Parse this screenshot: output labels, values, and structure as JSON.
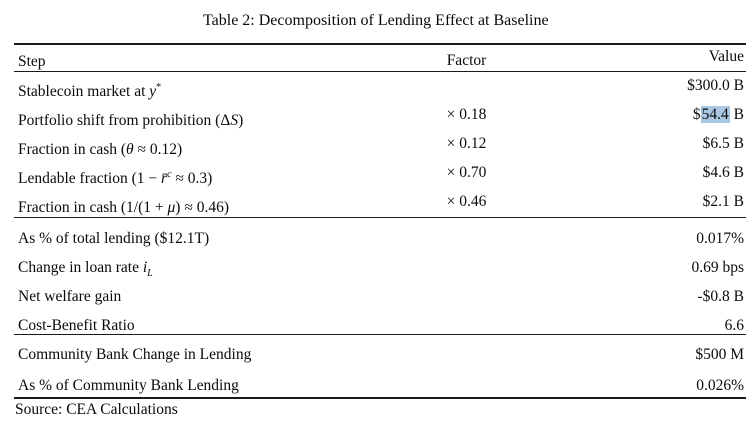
{
  "title": "Table 2: Decomposition of Lending Effect at Baseline",
  "header": {
    "step": "Step",
    "factor": "Factor",
    "value": "Value"
  },
  "highlight_color": "#a9c7e1",
  "rows_block1": [
    {
      "step_pre": "Stablecoin market at ",
      "step_var": "y",
      "step_sup": "*",
      "step_post": "",
      "factor": "",
      "value": "$300.0 B"
    },
    {
      "step_pre": "Portfolio shift from prohibition (Δ",
      "step_var": "S",
      "step_sup": "",
      "step_post": ")",
      "factor": "× 0.18",
      "value_pre": "$",
      "value_hl": "54.4",
      "value_post": " B"
    },
    {
      "step_pre": "Fraction in cash (",
      "step_var": "θ",
      "step_sup": "",
      "step_post": " ≈ 0.12)",
      "factor": "× 0.12",
      "value": "$6.5 B"
    },
    {
      "step_pre": "Lendable fraction (1 − ",
      "step_var": "r̄",
      "step_sup": "c",
      "step_post": " ≈ 0.3)",
      "factor": "× 0.70",
      "value": "$4.6 B"
    },
    {
      "step_pre": "Fraction in cash (1/(1 + ",
      "step_var": "μ",
      "step_sup": "",
      "step_post": ") ≈ 0.46)",
      "factor": "× 0.46",
      "value": "$2.1 B"
    }
  ],
  "rows_block2": [
    {
      "step": "As % of total lending ($12.1T)",
      "value": "0.017%"
    },
    {
      "step_pre": "Change in loan rate ",
      "step_var": "i",
      "step_sub": "L",
      "value": "0.69 bps"
    },
    {
      "step": "Net welfare gain",
      "value": "-$0.8 B"
    },
    {
      "step": "Cost-Benefit Ratio",
      "value": "6.6"
    }
  ],
  "rows_block3": [
    {
      "step": "Community Bank Change in Lending",
      "value": "$500 M"
    },
    {
      "step": "As % of Community Bank Lending",
      "value": "0.026%"
    }
  ],
  "source": "Source: CEA Calculations"
}
